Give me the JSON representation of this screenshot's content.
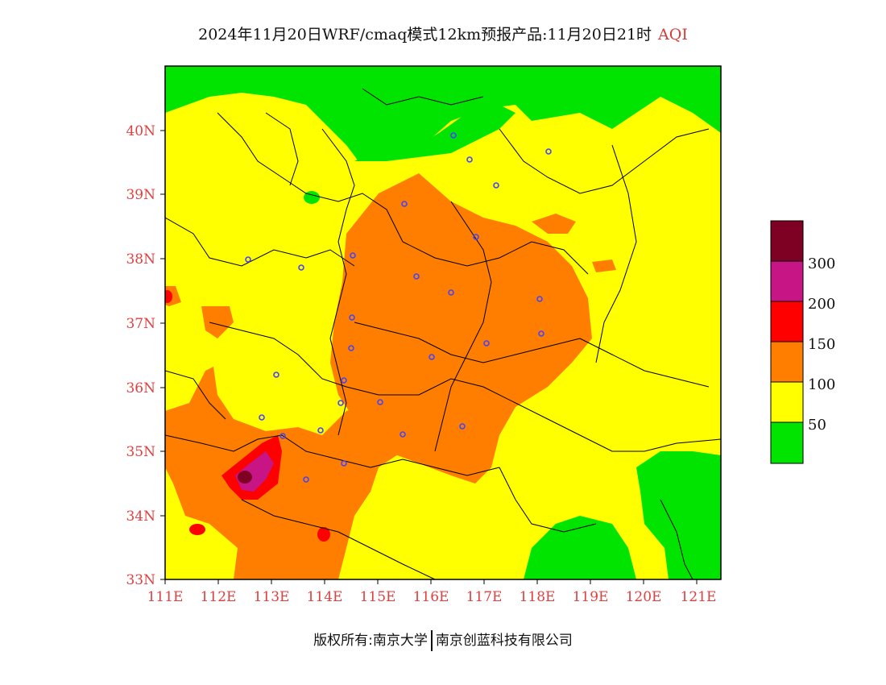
{
  "header": {
    "title": "2024年11月20日WRF/cmaq模式12km预报产品:11月20日21时",
    "index_label": "AQI"
  },
  "map": {
    "lat_labels": [
      "40N",
      "39N",
      "38N",
      "37N",
      "36N",
      "35N",
      "34N",
      "33N"
    ],
    "lon_labels": [
      "111E",
      "112E",
      "113E",
      "114E",
      "115E",
      "116E",
      "117E",
      "118E",
      "119E",
      "120E",
      "121E"
    ],
    "colors": {
      "good": "#00e400",
      "moderate": "#ffff00",
      "usg": "#ff7e00",
      "unhealthy": "#ff0000",
      "very_unhealthy": "#c71585",
      "hazardous": "#7e0023",
      "station_marker": "#4444ff",
      "border_line": "#000000"
    }
  },
  "legend": {
    "labels": [
      "300",
      "200",
      "150",
      "100",
      "50"
    ],
    "colors": [
      "#7e0023",
      "#c71585",
      "#ff0000",
      "#ff7e00",
      "#ffff00",
      "#00e400"
    ]
  },
  "footer": {
    "left_text": "版权所有:南京大学",
    "right_text": "南京创蓝科技有限公司"
  }
}
